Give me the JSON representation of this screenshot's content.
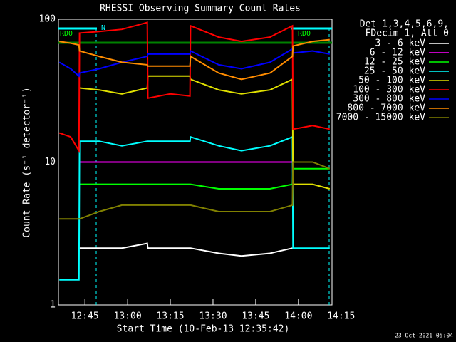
{
  "chart_data": {
    "type": "line",
    "title": "RHESSI Observing Summary Count Rates",
    "x_label": "Start Time (10-Feb-13 12:35:42)",
    "y_label": "Count Rate (s⁻¹ detector⁻¹)",
    "footer": "23-Oct-2021 05:04",
    "legend_header": [
      "Det 1,3,4,5,6,9,",
      "FDecim 1, Att 0"
    ],
    "annotations": [
      "RD0",
      "N",
      "RD0"
    ],
    "log_y": true,
    "xlim": [
      755.7,
      851.8
    ],
    "ylim": [
      1,
      100
    ],
    "xticks": [
      {
        "value": 765,
        "label": "12:45"
      },
      {
        "value": 780,
        "label": "13:00"
      },
      {
        "value": 795,
        "label": "13:15"
      },
      {
        "value": 810,
        "label": "13:30"
      },
      {
        "value": 825,
        "label": "13:45"
      },
      {
        "value": 840,
        "label": "14:00"
      },
      {
        "value": 855,
        "label": "14:15"
      }
    ],
    "yticks": [
      1,
      10,
      100
    ],
    "x": [
      756,
      760,
      762.9,
      763.1,
      770,
      778,
      786.9,
      787.1,
      795,
      801.9,
      802.1,
      812,
      820,
      830,
      837.9,
      838.1,
      845,
      851
    ],
    "series": [
      {
        "name": "3 - 6 keV",
        "color": "#ffffff",
        "values": [
          null,
          null,
          null,
          2.5,
          2.5,
          2.5,
          2.7,
          2.5,
          2.5,
          2.5,
          2.5,
          2.3,
          2.2,
          2.3,
          2.5,
          null,
          null,
          null
        ]
      },
      {
        "name": "6 - 12 keV",
        "color": "#ff00ff",
        "values": [
          null,
          null,
          null,
          10,
          10,
          10,
          10,
          10,
          10,
          10,
          10,
          10,
          10,
          10,
          10,
          null,
          null,
          null
        ]
      },
      {
        "name": "12 - 25 keV",
        "color": "#00ff00",
        "values": [
          null,
          null,
          null,
          7,
          7,
          7,
          7,
          7,
          7,
          7,
          7,
          6.5,
          6.5,
          6.5,
          7,
          9,
          9,
          9
        ]
      },
      {
        "name": "25 - 50 keV",
        "color": "#00ffff",
        "values": [
          1.5,
          1.5,
          1.5,
          14,
          14,
          13,
          14,
          14,
          14,
          14,
          15,
          13,
          12,
          13,
          15,
          2.5,
          2.5,
          2.5
        ]
      },
      {
        "name": "50 - 100 keV",
        "color": "#e0e000",
        "values": [
          null,
          null,
          null,
          33,
          32,
          30,
          33,
          40,
          40,
          40,
          38,
          32,
          30,
          32,
          38,
          7,
          7,
          6.5
        ]
      },
      {
        "name": "100 - 300 keV",
        "color": "#ff0000",
        "values": [
          16,
          15,
          12,
          80,
          82,
          85,
          95,
          28,
          30,
          29,
          90,
          75,
          70,
          75,
          90,
          17,
          18,
          17
        ]
      },
      {
        "name": "300 - 800 keV",
        "color": "#0000ff",
        "values": [
          50,
          45,
          40,
          42,
          45,
          50,
          55,
          57,
          57,
          57,
          60,
          48,
          45,
          50,
          62,
          58,
          60,
          57
        ]
      },
      {
        "name": "800 - 7000 keV",
        "color": "#ff8c00",
        "values": [
          70,
          68,
          66,
          60,
          55,
          50,
          48,
          47,
          47,
          47,
          55,
          42,
          38,
          42,
          55,
          65,
          70,
          72
        ]
      },
      {
        "name": "7000 - 15000 keV",
        "color": "#808000",
        "values": [
          4,
          4,
          4,
          4,
          4.5,
          5,
          5,
          5,
          5,
          5,
          5,
          4.5,
          4.5,
          4.5,
          5,
          10,
          10,
          9
        ]
      }
    ]
  }
}
